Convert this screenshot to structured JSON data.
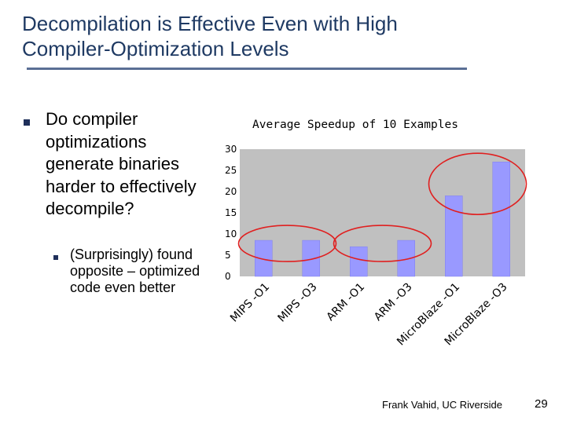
{
  "slide": {
    "title_line1": "Decompilation is Effective Even with High",
    "title_line2": "Compiler-Optimization Levels",
    "bullet": "Do compiler optimizations generate binaries harder to effectively decompile?",
    "sub_bullet": "(Surprisingly) found opposite – optimized code even better",
    "footer": "Frank Vahid, UC Riverside",
    "page_number": "29"
  },
  "colors": {
    "title": "#1f3a63",
    "plot_bg": "#c0c0c0",
    "bar_fill": "#9999ff",
    "circle": "#e02020"
  },
  "chart_data": {
    "type": "bar",
    "title": "Average Speedup of 10 Examples",
    "categories": [
      "MIPS -O1",
      "MIPS -O3",
      "ARM -O1",
      "ARM -O3",
      "MicroBlaze -O1",
      "MicroBlaze -O3"
    ],
    "values": [
      8.5,
      8.5,
      7,
      8.5,
      19,
      27
    ],
    "ylim": [
      0,
      30
    ],
    "yticks": [
      0,
      5,
      10,
      15,
      20,
      25,
      30
    ],
    "xlabel": "",
    "ylabel": "",
    "grid": false,
    "annotations": [
      "circle around MIPS pair",
      "circle around ARM pair",
      "circle around MicroBlaze pair"
    ]
  }
}
